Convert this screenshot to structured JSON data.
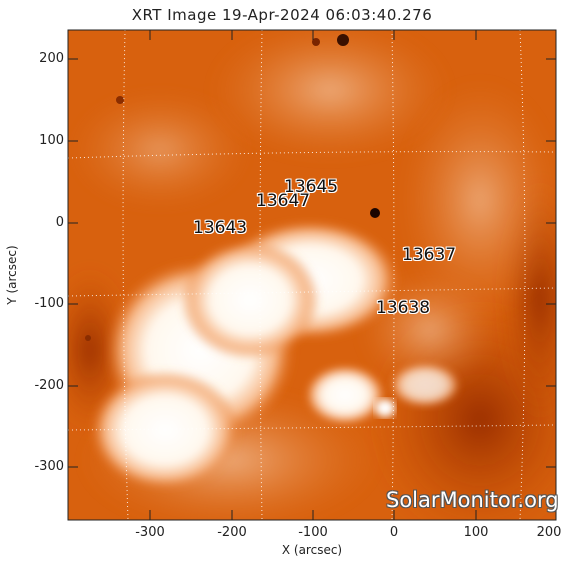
{
  "title": "XRT Image 19-Apr-2024 06:03:40.276",
  "axes": {
    "xlabel": "X (arcsec)",
    "ylabel": "Y (arcsec)",
    "x_range": [
      -400,
      200
    ],
    "y_range": [
      -360,
      235
    ],
    "x_ticks": [
      "-300",
      "-200",
      "-100",
      "0",
      "100",
      "200"
    ],
    "y_ticks": [
      "200",
      "100",
      "0",
      "-100",
      "-200",
      "-300"
    ]
  },
  "regions": [
    {
      "id": "13645",
      "label": "13645",
      "x": -135,
      "y": 35
    },
    {
      "id": "13647",
      "label": "13647",
      "x": -170,
      "y": 20
    },
    {
      "id": "13643",
      "label": "13643",
      "x": -255,
      "y": -8
    },
    {
      "id": "13637",
      "label": "13637",
      "x": 10,
      "y": -42
    },
    {
      "id": "13638",
      "label": "13638",
      "x": -20,
      "y": -107
    }
  ],
  "watermark": "SolarMonitor.org",
  "colors": {
    "background": "#d95e08",
    "bright": "#fffaf0",
    "dark": "#a83400"
  }
}
